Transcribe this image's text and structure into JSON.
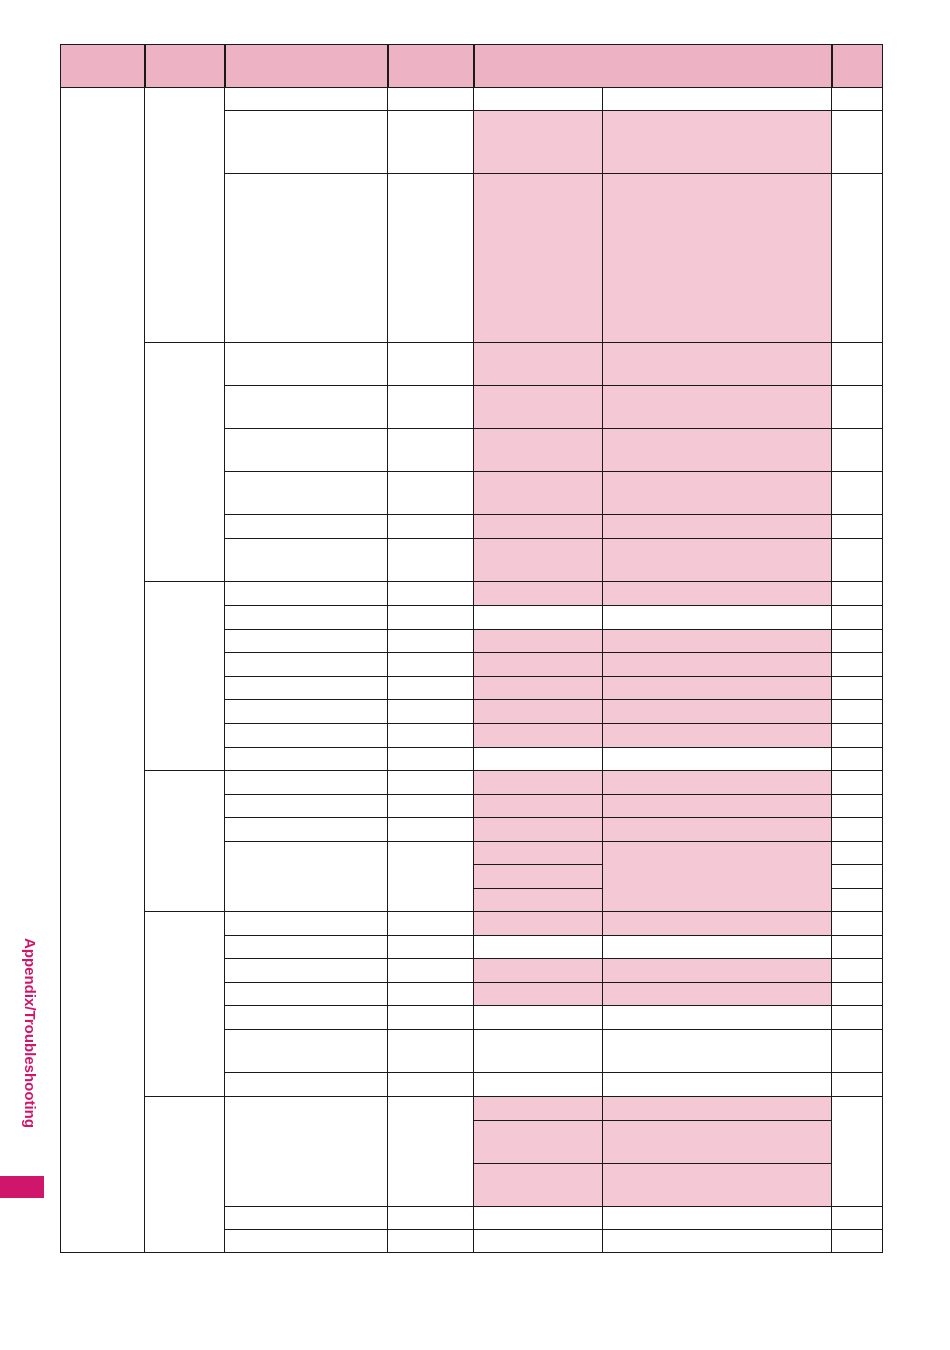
{
  "colors": {
    "header_fill": "#eeb2c5",
    "highlight_fill": "#f4c9d5",
    "grid_line": "#1a1a1a",
    "accent": "#d0166b"
  },
  "side_label": "Appendix/Troubleshooting",
  "table": {
    "header": [
      "",
      "",
      "",
      "",
      "",
      ""
    ],
    "highlight": [
      false,
      true,
      true,
      true,
      true,
      true,
      true,
      true,
      true,
      true,
      false,
      true,
      true,
      true,
      true,
      true,
      false,
      true,
      true,
      true,
      true,
      true,
      true,
      true,
      false,
      true,
      true,
      false,
      false,
      false,
      true,
      true,
      true,
      false,
      false
    ]
  }
}
